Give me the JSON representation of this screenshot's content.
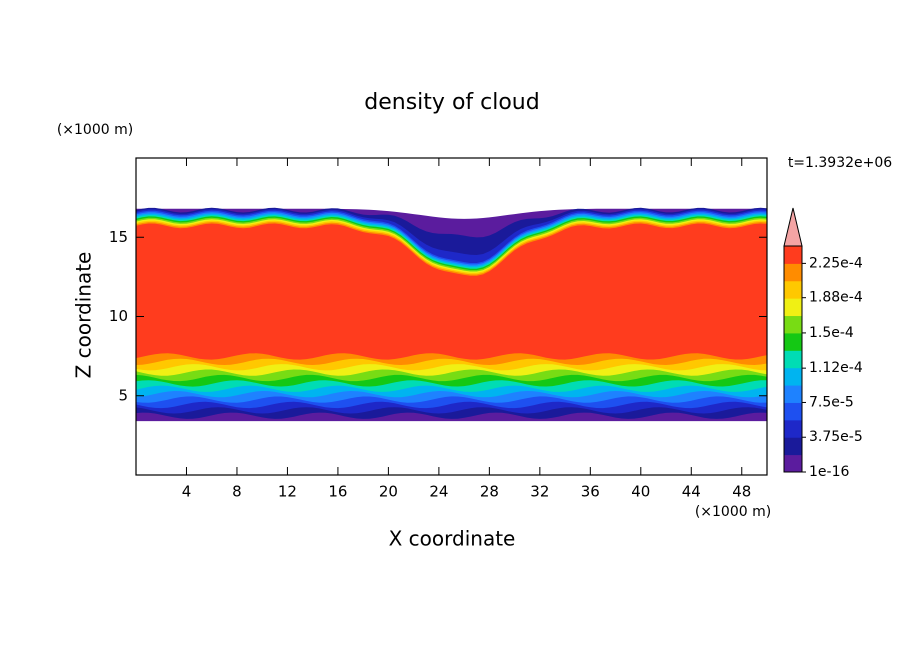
{
  "chart_data": {
    "type": "contour",
    "title": "density of cloud",
    "x_label": "X coordinate",
    "y_label": "Z coordinate",
    "x_unit": "(×1000 m)",
    "y_unit": "(×1000 m)",
    "annotation": "t=1.3932e+06",
    "xlim": [
      0,
      50
    ],
    "ylim": [
      0,
      20
    ],
    "xticks": [
      4,
      8,
      12,
      16,
      20,
      24,
      28,
      32,
      36,
      40,
      44,
      48
    ],
    "yticks": [
      5,
      10,
      15
    ],
    "colorbar": {
      "clim": [
        1e-16,
        0.00024375
      ],
      "colors": [
        "#5b1c9e",
        "#1a1a9a",
        "#1e28c8",
        "#1e50f0",
        "#1e82ff",
        "#00b4f0",
        "#00dcb4",
        "#14c814",
        "#78dc14",
        "#f0f014",
        "#ffc800",
        "#ff8c00",
        "#ff3c1e"
      ],
      "extend_color": "#f4a4a4",
      "ticks": [
        1e-16,
        {
          "value": 3.75e-05,
          "label": "3.75e-5"
        },
        {
          "value": 7.5e-05,
          "label": "7.5e-5"
        },
        {
          "value": 0.000112,
          "label": "1.12e-4"
        },
        {
          "value": 0.00015,
          "label": "1.5e-4"
        },
        {
          "value": 0.000188,
          "label": "1.88e-4"
        },
        {
          "value": 0.000225,
          "label": "2.25e-4"
        }
      ]
    }
  }
}
